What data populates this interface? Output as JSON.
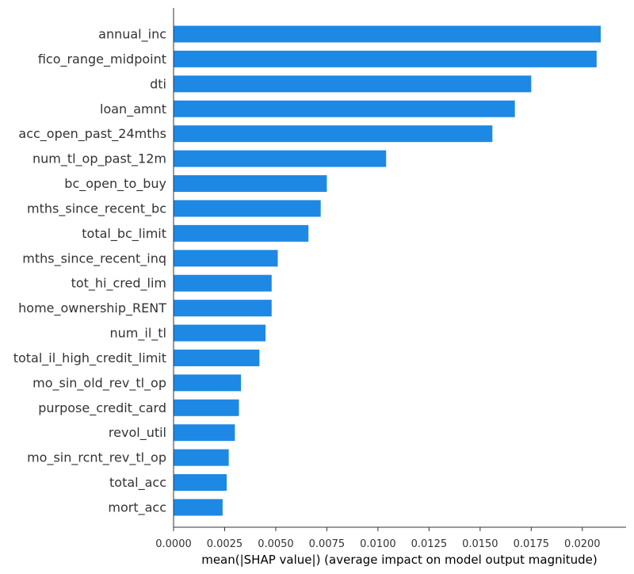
{
  "chart_data": {
    "type": "bar",
    "orientation": "horizontal",
    "categories": [
      "annual_inc",
      "fico_range_midpoint",
      "dti",
      "loan_amnt",
      "acc_open_past_24mths",
      "num_tl_op_past_12m",
      "bc_open_to_buy",
      "mths_since_recent_bc",
      "total_bc_limit",
      "mths_since_recent_inq",
      "tot_hi_cred_lim",
      "home_ownership_RENT",
      "num_il_tl",
      "total_il_high_credit_limit",
      "mo_sin_old_rev_tl_op",
      "purpose_credit_card",
      "revol_util",
      "mo_sin_rcnt_rev_tl_op",
      "total_acc",
      "mort_acc"
    ],
    "values": [
      0.0209,
      0.0207,
      0.0175,
      0.0167,
      0.0156,
      0.0104,
      0.0075,
      0.0072,
      0.0066,
      0.0051,
      0.0048,
      0.0048,
      0.0045,
      0.0042,
      0.0033,
      0.0032,
      0.003,
      0.0027,
      0.0026,
      0.0024
    ],
    "xlabel": "mean(|SHAP value|) (average impact on model output magnitude)",
    "ylabel": "",
    "title": "",
    "xlim": [
      0,
      0.022
    ],
    "xticks": [
      "0.0000",
      "0.0025",
      "0.0050",
      "0.0075",
      "0.0100",
      "0.0125",
      "0.0150",
      "0.0175",
      "0.0200"
    ],
    "xtick_values": [
      0,
      0.0025,
      0.005,
      0.0075,
      0.01,
      0.0125,
      0.015,
      0.0175,
      0.02
    ],
    "bar_color": "#1e88e5",
    "axis_color": "#333333",
    "grid": false
  }
}
